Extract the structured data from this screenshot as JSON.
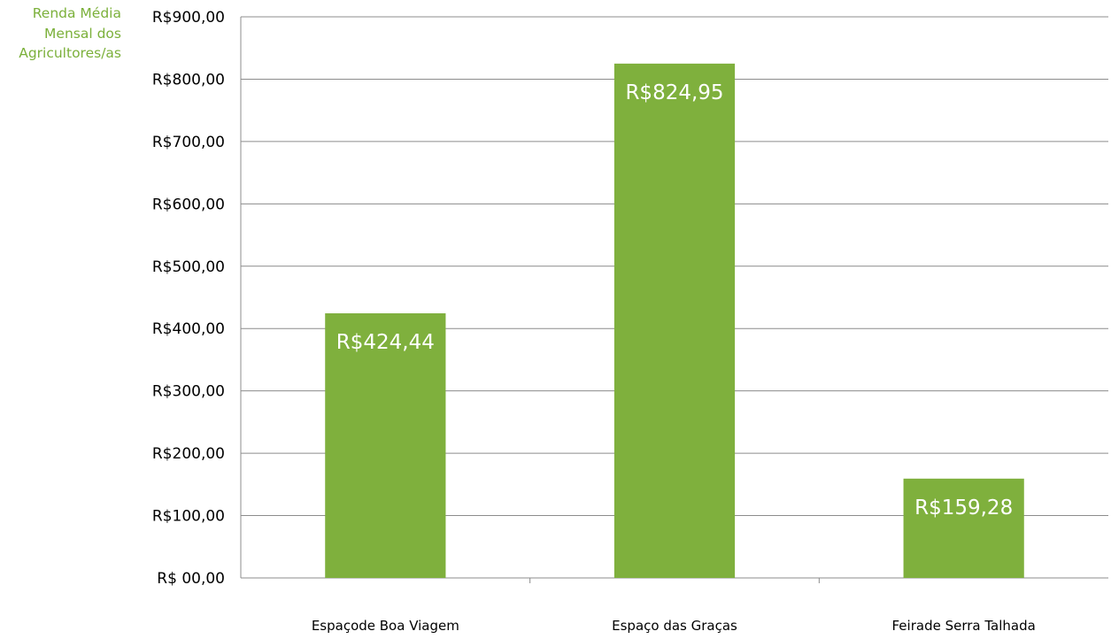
{
  "chart_data": {
    "type": "bar",
    "ylabel_lines": [
      "Renda Média",
      "Mensal dos",
      "Agricultores/as"
    ],
    "categories": [
      "Espaçode Boa Viagem",
      "Espaço das Graças",
      "Feirade Serra Talhada"
    ],
    "values": [
      424.44,
      824.95,
      159.28
    ],
    "data_labels": [
      "R$424,44",
      "R$824,95",
      "R$159,28"
    ],
    "yticks": [
      "R$ 00,00",
      "R$100,00",
      "R$200,00",
      "R$300,00",
      "R$400,00",
      "R$500,00",
      "R$600,00",
      "R$700,00",
      "R$800,00",
      "R$900,00"
    ],
    "ylim": [
      0,
      900
    ],
    "grid": true,
    "bar_color": "#7fb03d",
    "label_color": "#7bb03a"
  }
}
